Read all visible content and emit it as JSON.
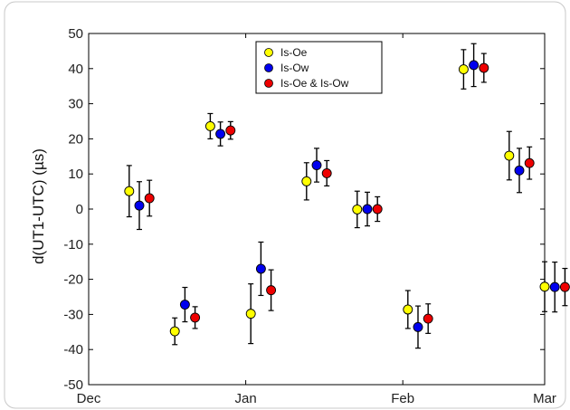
{
  "chart_data": {
    "type": "scatter",
    "title": "",
    "xlabel": "",
    "ylabel": "d(UT1-UTC) (µs)",
    "x_ticks": [
      "Dec",
      "Jan",
      "Feb",
      "Mar"
    ],
    "y_ticks": [
      "50",
      "40",
      "30",
      "20",
      "10",
      "0",
      "-10",
      "-20",
      "-30",
      "-40",
      "-50"
    ],
    "ylim": [
      -50,
      50
    ],
    "grid": false,
    "legend_position": "top-center",
    "colors": {
      "Is-Oe": "#ffff00",
      "Is-Ow": "#0000ee",
      "Is-Oe & Is-Ow": "#ee0000"
    },
    "series": [
      {
        "name": "Is-Oe",
        "x": [
          "Dec 09",
          "Dec 18",
          "Dec 25",
          "Jan 02",
          "Jan 13",
          "Jan 23",
          "Feb 02",
          "Feb 13",
          "Feb 22",
          "Mar 01"
        ],
        "y": [
          5.1,
          -34.8,
          23.6,
          -29.8,
          7.9,
          -0.1,
          -28.6,
          39.8,
          15.2,
          -22.1
        ],
        "err": [
          7.3,
          3.8,
          3.6,
          8.5,
          5.3,
          5.2,
          5.4,
          5.6,
          6.9,
          7.1
        ]
      },
      {
        "name": "Is-Ow",
        "x": [
          "Dec 11",
          "Dec 20",
          "Dec 27",
          "Jan 04",
          "Jan 15",
          "Jan 25",
          "Feb 04",
          "Feb 15",
          "Feb 24",
          "Mar 03"
        ],
        "y": [
          1.0,
          -27.2,
          21.4,
          -17.0,
          12.5,
          0.0,
          -33.6,
          41.0,
          11.0,
          -22.2
        ],
        "err": [
          6.8,
          4.9,
          3.4,
          7.6,
          4.8,
          4.8,
          6.0,
          6.1,
          6.3,
          7.1
        ]
      },
      {
        "name": "Is-Oe & Is-Ow",
        "x": [
          "Dec 13",
          "Dec 22",
          "Dec 29",
          "Jan 06",
          "Jan 17",
          "Jan 27",
          "Feb 06",
          "Feb 17",
          "Feb 26",
          "Mar 05"
        ],
        "y": [
          3.1,
          -30.9,
          22.4,
          -23.1,
          10.2,
          0.0,
          -31.2,
          40.2,
          13.1,
          -22.2
        ],
        "err": [
          5.1,
          3.1,
          2.5,
          5.8,
          3.6,
          3.5,
          4.2,
          4.1,
          4.6,
          5.3
        ]
      },
      {
        "name": "",
        "x": [
          "Mar 08",
          "Mar 10",
          "Mar 12"
        ],
        "y": [
          -22.4,
          -21.5,
          -21.9
        ],
        "err": [
          12.5,
          12.0,
          8.4
        ],
        "point_series_order": [
          "Is-Oe",
          "Is-Ow",
          "Is-Oe & Is-Ow"
        ]
      }
    ]
  }
}
